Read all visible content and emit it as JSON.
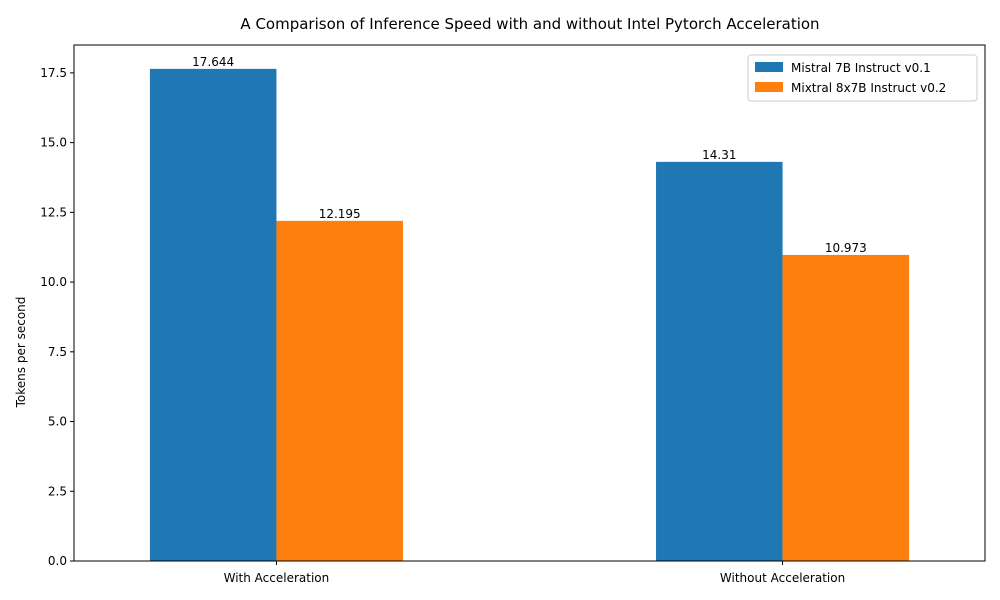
{
  "chart_data": {
    "type": "bar",
    "title": "A Comparison of Inference Speed with and without Intel Pytorch Acceleration",
    "xlabel": "",
    "ylabel": "Tokens per second",
    "categories": [
      "With Acceleration",
      "Without Acceleration"
    ],
    "series": [
      {
        "name": "Mistral 7B Instruct v0.1",
        "values": [
          17.644,
          14.31
        ],
        "labels": [
          "17.644",
          "14.31"
        ],
        "color": "#1f77b4"
      },
      {
        "name": "Mixtral 8x7B Instruct v0.2",
        "values": [
          12.195,
          10.973
        ],
        "labels": [
          "12.195",
          "10.973"
        ],
        "color": "#ff7f0e"
      }
    ],
    "ylim": [
      0,
      18.5
    ],
    "yticks": [
      0,
      2.5,
      5,
      7.5,
      10,
      12.5,
      15,
      17.5
    ],
    "ytick_labels": [
      "0.0",
      "2.5",
      "5.0",
      "7.5",
      "10.0",
      "12.5",
      "15.0",
      "17.5"
    ],
    "legend_position": "top-right",
    "grid": false
  }
}
